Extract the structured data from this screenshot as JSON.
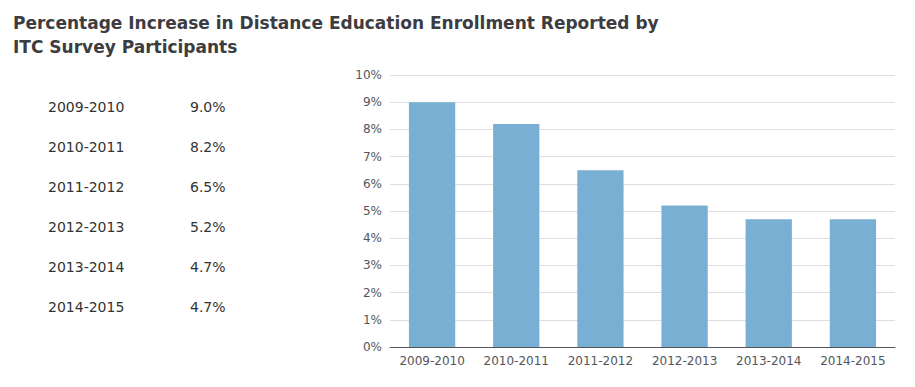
{
  "chart_data": {
    "type": "bar",
    "title": "Percentage Increase in Distance Education Enrollment Reported by\nITC Survey Participants",
    "categories": [
      "2009-2010",
      "2010-2011",
      "2011-2012",
      "2012-2013",
      "2013-2014",
      "2014-2015"
    ],
    "values": [
      9.0,
      8.2,
      6.5,
      5.2,
      4.7,
      4.7
    ],
    "color": "#7aafd4",
    "ylim": [
      0,
      10
    ],
    "yticks": [
      {
        "value": 0,
        "label": "0%"
      },
      {
        "value": 1,
        "label": "1%"
      },
      {
        "value": 2,
        "label": "2%"
      },
      {
        "value": 3,
        "label": "3%"
      },
      {
        "value": 4,
        "label": "4%"
      },
      {
        "value": 5,
        "label": "5%"
      },
      {
        "value": 6,
        "label": "6%"
      },
      {
        "value": 7,
        "label": "7%"
      },
      {
        "value": 8,
        "label": "8%"
      },
      {
        "value": 9,
        "label": "9%"
      },
      {
        "value": 10,
        "label": "10%"
      }
    ],
    "grid": true,
    "annotations": [
      "2009-2010",
      "9.0%",
      "2010-2011",
      "8.2%",
      "2011-2012",
      "6.5%",
      "2012-2013",
      "5.2%",
      "2013-2014",
      "4.7%",
      "2014-2015",
      "4.7%"
    ]
  }
}
